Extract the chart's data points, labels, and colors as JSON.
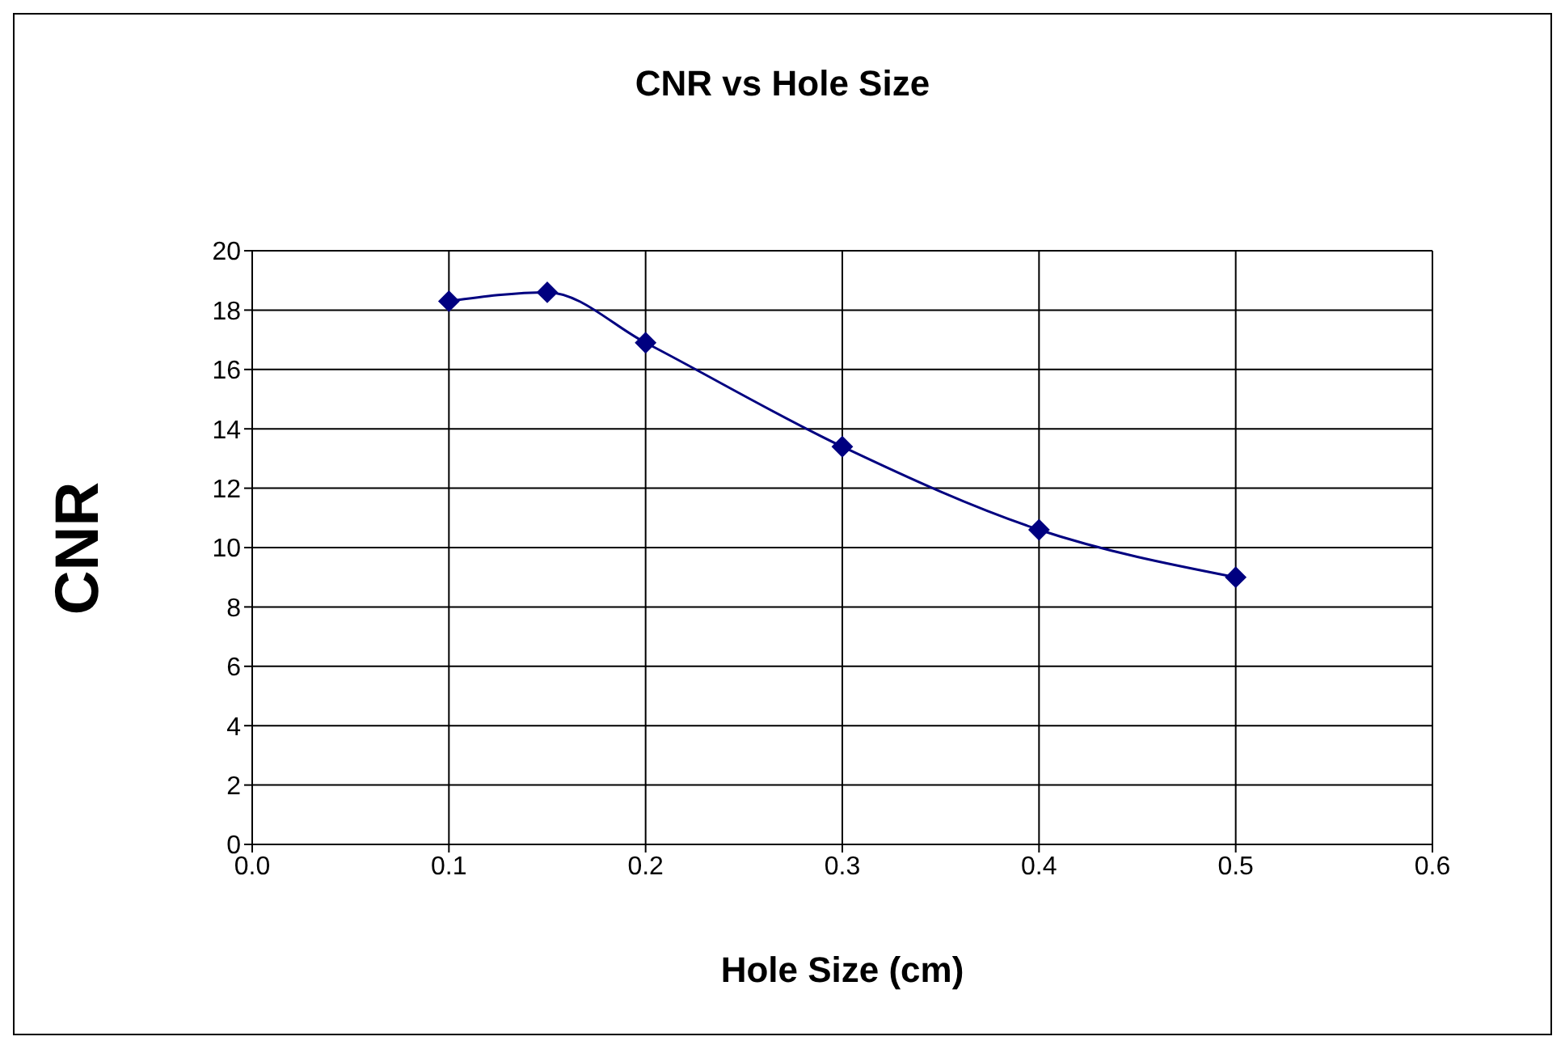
{
  "chart_data": {
    "type": "line",
    "title": "CNR vs Hole Size",
    "xlabel": "Hole Size (cm)",
    "ylabel": "CNR",
    "x": [
      0.1,
      0.15,
      0.2,
      0.3,
      0.4,
      0.5
    ],
    "series": [
      {
        "color": "#000080",
        "values": [
          18.3,
          18.6,
          16.9,
          13.4,
          10.6,
          9.0
        ]
      }
    ],
    "xlim": [
      0.0,
      0.6
    ],
    "xticks": [
      {
        "value": 0,
        "label": "0.0"
      },
      {
        "value": 0.1,
        "label": "0.1"
      },
      {
        "value": 0.2,
        "label": "0.2"
      },
      {
        "value": 0.3,
        "label": "0.3"
      },
      {
        "value": 0.4,
        "label": "0.4"
      },
      {
        "value": 0.5,
        "label": "0.5"
      },
      {
        "value": 0.6,
        "label": "0.6"
      }
    ],
    "ylim": [
      0,
      20
    ],
    "yticks": [
      0,
      2,
      4,
      6,
      8,
      10,
      12,
      14,
      16,
      18,
      20
    ],
    "grid": true,
    "legend": false,
    "marker": "diamond",
    "line_style": "solid"
  }
}
